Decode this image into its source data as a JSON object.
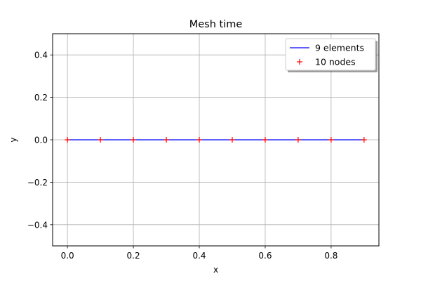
{
  "chart_data": {
    "type": "line",
    "title": "Mesh time",
    "xlabel": "x",
    "ylabel": "y",
    "xlim": [
      -0.045,
      0.945
    ],
    "ylim": [
      -0.5,
      0.5
    ],
    "grid": true,
    "legend_position": "top-right",
    "x_ticks": [
      0.0,
      0.2,
      0.4,
      0.6,
      0.8
    ],
    "x_tick_labels": [
      "0.0",
      "0.2",
      "0.4",
      "0.6",
      "0.8"
    ],
    "y_ticks": [
      0.4,
      0.2,
      0.0,
      -0.2,
      -0.4
    ],
    "y_tick_labels": [
      "0.4",
      "0.2",
      "0.0",
      "−0.2",
      "−0.4"
    ],
    "series": [
      {
        "name": "9 elements",
        "style": "line",
        "color": "#0000ff",
        "x": [
          0.0,
          0.1,
          0.2,
          0.3,
          0.4,
          0.5,
          0.6,
          0.7,
          0.8,
          0.9
        ],
        "y": [
          0,
          0,
          0,
          0,
          0,
          0,
          0,
          0,
          0,
          0
        ]
      },
      {
        "name": "10 nodes",
        "style": "plus-marker",
        "color": "#ff0000",
        "x": [
          0.0,
          0.1,
          0.2,
          0.3,
          0.4,
          0.5,
          0.6,
          0.7,
          0.8,
          0.9
        ],
        "y": [
          0,
          0,
          0,
          0,
          0,
          0,
          0,
          0,
          0,
          0
        ]
      }
    ]
  }
}
